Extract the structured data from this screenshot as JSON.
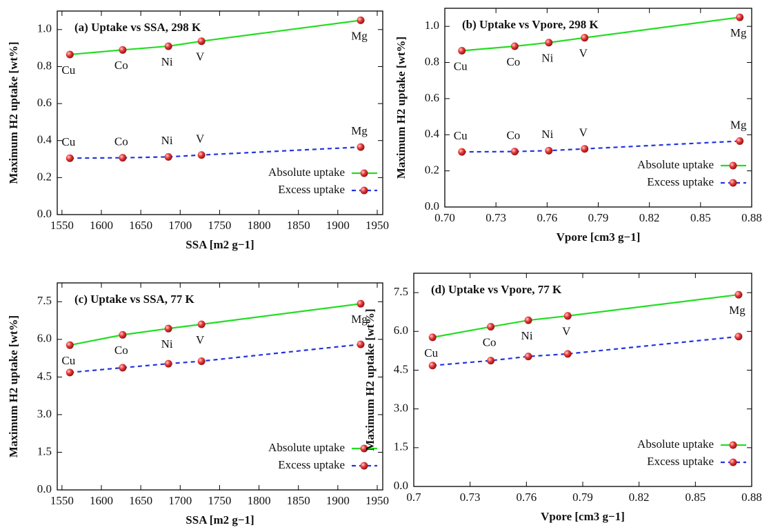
{
  "chart_data": [
    {
      "type": "line",
      "title": "(a) Uptake vs SSA, 298 K",
      "xlabel": "SSA [m2 g−1]",
      "ylabel": "Maximum H2 uptake [wt%]",
      "x": [
        1560,
        1627,
        1685,
        1727,
        1929
      ],
      "series": [
        {
          "name": "Absolute uptake",
          "color": "#22dd22",
          "dashed": false,
          "values": [
            0.865,
            0.89,
            0.91,
            0.937,
            1.05
          ],
          "labels": [
            "Cu",
            "Co",
            "Ni",
            "V",
            "Mg"
          ]
        },
        {
          "name": "Excess uptake",
          "color": "#2233dd",
          "dashed": true,
          "values": [
            0.305,
            0.307,
            0.312,
            0.322,
            0.365
          ],
          "labels": [
            "Cu",
            "Co",
            "Ni",
            "V",
            "Mg"
          ]
        }
      ],
      "xlim": [
        1544,
        1957
      ],
      "ylim": [
        0,
        1.1
      ],
      "xticks": [
        1550,
        1600,
        1650,
        1700,
        1750,
        1800,
        1850,
        1900,
        1950
      ],
      "yticks": [
        {
          "value": 0,
          "label": "0.0"
        },
        0.2,
        0.4,
        0.6,
        0.8,
        {
          "value": 1,
          "label": "1.0"
        }
      ],
      "legend": "lower right",
      "grid": false
    },
    {
      "type": "line",
      "title": "(b) Uptake vs Vpore, 298 K",
      "xlabel": "Vpore [cm3 g−1]",
      "ylabel": "Maximum H2 uptake [wt%]",
      "x": [
        0.71,
        0.741,
        0.761,
        0.782,
        0.873
      ],
      "series": [
        {
          "name": "Absolute uptake",
          "color": "#22dd22",
          "dashed": false,
          "values": [
            0.865,
            0.89,
            0.91,
            0.937,
            1.05
          ],
          "labels": [
            "Cu",
            "Co",
            "Ni",
            "V",
            "Mg"
          ]
        },
        {
          "name": "Excess uptake",
          "color": "#2233dd",
          "dashed": true,
          "values": [
            0.305,
            0.307,
            0.312,
            0.322,
            0.365
          ],
          "labels": [
            "Cu",
            "Co",
            "Ni",
            "V",
            "Mg"
          ]
        }
      ],
      "xlim": [
        0.7,
        0.88
      ],
      "ylim": [
        0,
        1.1
      ],
      "xticks": [
        {
          "value": 0.7,
          "label": "0.70"
        },
        0.73,
        0.76,
        0.79,
        0.82,
        0.85,
        0.88
      ],
      "yticks": [
        {
          "value": 0,
          "label": "0.0"
        },
        0.2,
        0.4,
        0.6,
        0.8,
        {
          "value": 1,
          "label": "1.0"
        }
      ],
      "legend": "lower right",
      "grid": false
    },
    {
      "type": "line",
      "title": "(c) Uptake vs SSA, 77 K",
      "xlabel": "SSA [m2 g−1]",
      "ylabel": "Maximum H2 uptake [wt%]",
      "x": [
        1560,
        1627,
        1685,
        1727,
        1929
      ],
      "series": [
        {
          "name": "Absolute uptake",
          "color": "#22dd22",
          "dashed": false,
          "values": [
            5.77,
            6.18,
            6.43,
            6.6,
            7.42
          ],
          "labels": [
            "Cu",
            "Co",
            "Ni",
            "V",
            "Mg"
          ]
        },
        {
          "name": "Excess uptake",
          "color": "#2233dd",
          "dashed": true,
          "values": [
            4.68,
            4.87,
            5.03,
            5.13,
            5.8
          ]
        }
      ],
      "xlim": [
        1544,
        1957
      ],
      "ylim": [
        0,
        8.25
      ],
      "xticks": [
        1550,
        1600,
        1650,
        1700,
        1750,
        1800,
        1850,
        1900,
        1950
      ],
      "yticks": [
        {
          "value": 0,
          "label": "0.0"
        },
        1.5,
        {
          "value": 3,
          "label": "3.0"
        },
        4.5,
        {
          "value": 6,
          "label": "6.0"
        },
        7.5
      ],
      "legend": "lower right",
      "grid": false
    },
    {
      "type": "line",
      "title": "(d) Uptake vs Vpore, 77 K",
      "xlabel": "Vpore [cm3 g−1]",
      "ylabel": "Maximum H2 uptake [wt%]",
      "x": [
        0.71,
        0.741,
        0.761,
        0.782,
        0.873
      ],
      "series": [
        {
          "name": "Absolute uptake",
          "color": "#22dd22",
          "dashed": false,
          "values": [
            5.77,
            6.18,
            6.43,
            6.6,
            7.42
          ],
          "labels": [
            "Cu",
            "Co",
            "Ni",
            "V",
            "Mg"
          ]
        },
        {
          "name": "Excess uptake",
          "color": "#2233dd",
          "dashed": true,
          "values": [
            4.68,
            4.87,
            5.03,
            5.13,
            5.8
          ]
        }
      ],
      "xlim": [
        0.7,
        0.88
      ],
      "ylim": [
        0,
        8.25
      ],
      "xticks": [
        0.7,
        0.73,
        0.76,
        0.79,
        0.82,
        0.85,
        0.88
      ],
      "yticks": [
        {
          "value": 0,
          "label": "0.0"
        },
        1.5,
        {
          "value": 3,
          "label": "3.0"
        },
        4.5,
        {
          "value": 6,
          "label": "6.0"
        },
        7.5
      ],
      "legend": "lower right",
      "grid": false
    }
  ]
}
